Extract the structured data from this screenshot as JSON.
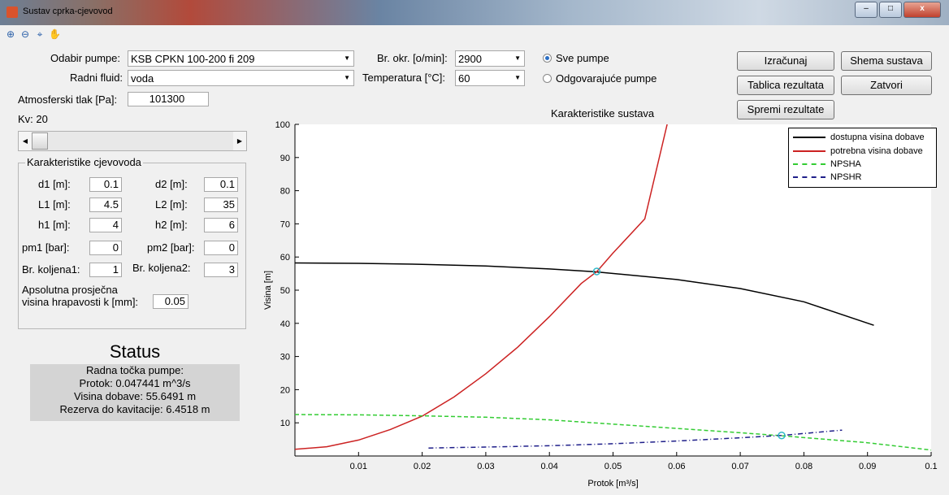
{
  "window": {
    "title": "Sustav cprka-cjevovod",
    "buttons": {
      "minimize": "–",
      "maximize": "□",
      "close": "x"
    }
  },
  "toolbar": {
    "icons": [
      "zoom-in-icon",
      "zoom-out-icon",
      "data-cursor-icon",
      "pan-hand-icon"
    ]
  },
  "form": {
    "pump_label": "Odabir pumpe:",
    "pump_value": "KSB CPKN 100-200 fi 209",
    "fluid_label": "Radni fluid:",
    "fluid_value": "voda",
    "speed_label": "Br. okr. [o/min]:",
    "speed_value": "2900",
    "temp_label": "Temperatura [°C]:",
    "temp_value": "60",
    "atm_label": "Atmosferski tlak [Pa]:",
    "atm_value": "101300",
    "kv_label": "Kv: 20",
    "radio_all": "Sve pumpe",
    "radio_matching": "Odgovarajuće pumpe",
    "radio_selected": "all"
  },
  "buttons": {
    "calculate": "Izračunaj",
    "scheme": "Shema sustava",
    "results_table": "Tablica rezultata",
    "close": "Zatvori",
    "save_results": "Spremi rezultate"
  },
  "pipe": {
    "title": "Karakteristike cjevovoda",
    "d1_label": "d1 [m]:",
    "d1": "0.1",
    "d2_label": "d2 [m]:",
    "d2": "0.1",
    "l1_label": "L1 [m]:",
    "l1": "4.5",
    "l2_label": "L2 [m]:",
    "l2": "35",
    "h1_label": "h1 [m]:",
    "h1": "4",
    "h2_label": "h2 [m]:",
    "h2": "6",
    "pm1_label": "pm1 [bar]:",
    "pm1": "0",
    "pm2_label": "pm2 [bar]:",
    "pm2": "0",
    "bk1_label": "Br. koljena1:",
    "bk1": "1",
    "bk2_label": "Br. koljena2:",
    "bk2": "3",
    "rough_label_1": "Apsolutna prosječna",
    "rough_label_2": "visina hrapavosti k [mm]:",
    "rough": "0.05"
  },
  "status": {
    "title": "Status",
    "line1": "Radna točka pumpe:",
    "line2": "Protok: 0.047441 m^3/s",
    "line3": "Visina dobave: 55.6491 m",
    "line4": "Rezerva do kavitacije: 6.4518 m"
  },
  "chart_data": {
    "type": "line",
    "title": "Karakteristike sustava",
    "xlabel": "Protok [m³/s]",
    "ylabel": "Visina [m]",
    "xlim": [
      0,
      0.1
    ],
    "ylim": [
      0,
      100
    ],
    "xticks": [
      0.01,
      0.02,
      0.03,
      0.04,
      0.05,
      0.06,
      0.07,
      0.08,
      0.09,
      0.1
    ],
    "yticks": [
      10,
      20,
      30,
      40,
      50,
      60,
      70,
      80,
      90,
      100
    ],
    "legend_position": "top-right",
    "series": [
      {
        "name": "dostupna visina dobave",
        "color": "#000000",
        "dash": "solid",
        "x": [
          0,
          0.01,
          0.02,
          0.03,
          0.04,
          0.047,
          0.06,
          0.07,
          0.08,
          0.091
        ],
        "y": [
          58.2,
          58.1,
          57.8,
          57.3,
          56.4,
          55.6,
          53.2,
          50.5,
          46.5,
          39.4
        ]
      },
      {
        "name": "potrebna visina dobave",
        "color": "#cc2222",
        "dash": "solid",
        "x": [
          0,
          0.005,
          0.01,
          0.015,
          0.02,
          0.025,
          0.03,
          0.035,
          0.04,
          0.045,
          0.047441,
          0.05,
          0.055,
          0.0585
        ],
        "y": [
          2,
          2.8,
          4.8,
          8,
          12,
          17.8,
          24.8,
          32.8,
          42,
          52,
          55.6,
          61.2,
          71.5,
          100
        ]
      },
      {
        "name": "NPSHA",
        "color": "#33cc33",
        "dash": "dashed",
        "x": [
          0,
          0.01,
          0.02,
          0.03,
          0.04,
          0.05,
          0.06,
          0.07,
          0.0765,
          0.09,
          0.1
        ],
        "y": [
          12.5,
          12.4,
          12.1,
          11.7,
          10.9,
          9.6,
          8.3,
          7,
          6.1,
          4,
          1.8
        ]
      },
      {
        "name": "NPSHR",
        "color": "#1f1f8a",
        "dash": "dashdot",
        "x": [
          0.021,
          0.03,
          0.04,
          0.05,
          0.06,
          0.07,
          0.0765,
          0.086
        ],
        "y": [
          2.4,
          2.7,
          3.1,
          3.7,
          4.5,
          5.5,
          6.2,
          7.8
        ]
      }
    ],
    "markers": [
      {
        "x": 0.047441,
        "y": 55.6491,
        "color": "#2fb8c8"
      },
      {
        "x": 0.0765,
        "y": 6.2,
        "color": "#2fb8c8"
      }
    ]
  }
}
